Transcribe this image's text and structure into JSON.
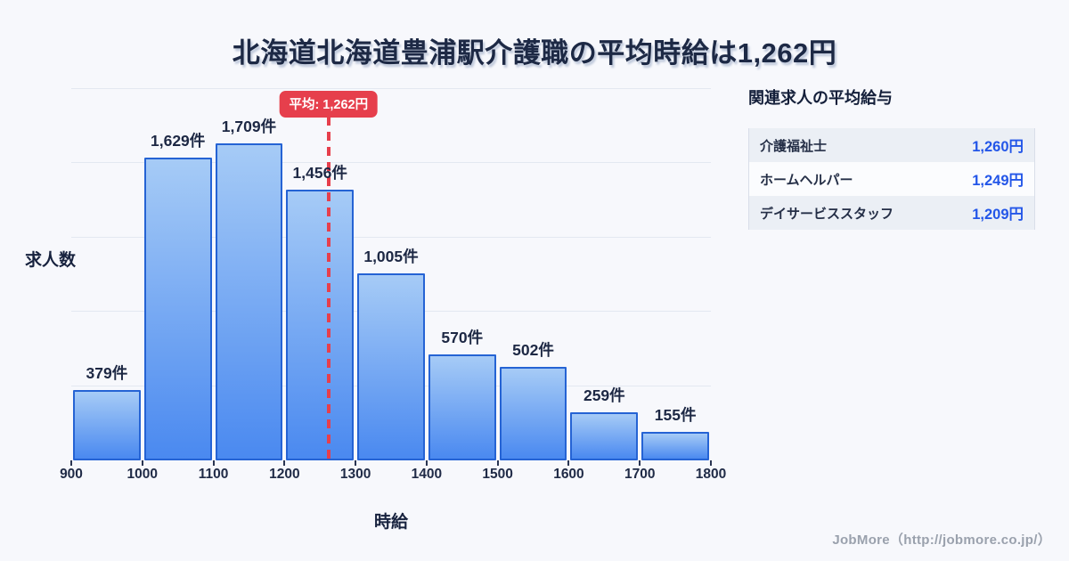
{
  "title": "北海道北海道豊浦駅介護職の平均時給は1,262円",
  "chart_data": {
    "type": "bar",
    "title": "北海道北海道豊浦駅介護職の平均時給は1,262円",
    "xlabel": "時給",
    "ylabel": "求人数",
    "bin_edges": [
      900,
      1000,
      1100,
      1200,
      1300,
      1400,
      1500,
      1600,
      1700,
      1800
    ],
    "values": [
      379,
      1629,
      1709,
      1456,
      1005,
      570,
      502,
      259,
      155
    ],
    "bar_labels": [
      "379件",
      "1,629件",
      "1,709件",
      "1,456件",
      "1,005件",
      "570件",
      "502件",
      "259件",
      "155件"
    ],
    "ylim": [
      0,
      2000
    ],
    "gridline_values": [
      400,
      800,
      1200,
      1600,
      2000
    ],
    "grid": true,
    "legend_position": "none",
    "average": {
      "value": 1262,
      "label": "平均: 1,262円"
    }
  },
  "side_panel": {
    "title": "関連求人の平均給与",
    "rows": [
      {
        "label": "介護福祉士",
        "value": "1,260円"
      },
      {
        "label": "ホームヘルパー",
        "value": "1,249円"
      },
      {
        "label": "デイサービススタッフ",
        "value": "1,209円"
      }
    ]
  },
  "footer": {
    "text": "JobMore（http://jobmore.co.jp/）"
  },
  "colors": {
    "accent_red": "#e63f4c",
    "bar_gradient_top": "#a6cbf6",
    "bar_gradient_bottom": "#4a89f0",
    "bar_border": "#2563d4",
    "value_blue": "#2356e8",
    "title_navy": "#1d2945"
  }
}
